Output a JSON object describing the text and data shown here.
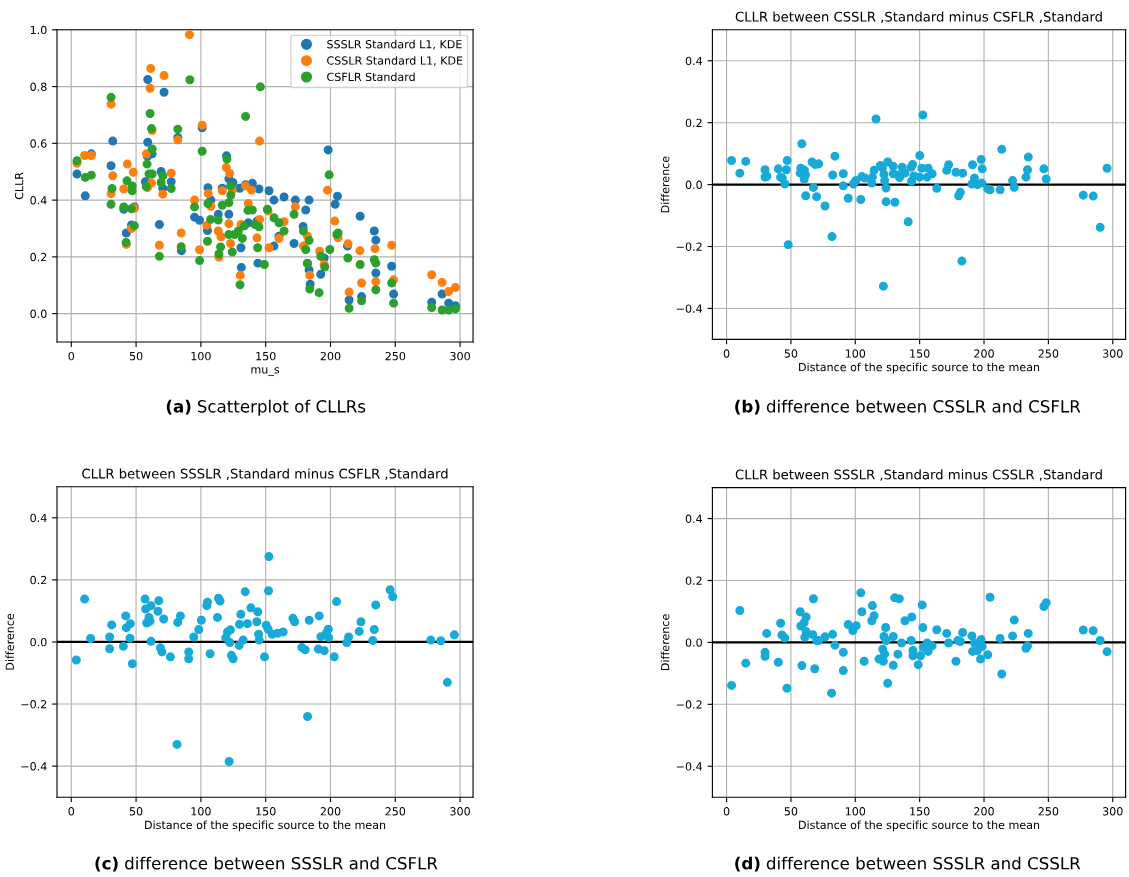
{
  "chart_data": [
    {
      "type": "scatter",
      "xlabel": "mu_s",
      "ylabel": "CLLR",
      "annotations": [
        "(a) Scatterplot of CLLRs"
      ],
      "xlim": [
        -11,
        310
      ],
      "ylim": [
        -0.1,
        1.0
      ],
      "xticks": [
        0,
        50,
        100,
        150,
        200,
        250,
        300
      ],
      "yticks": [
        {
          "value": 0.0,
          "label": "0.0"
        },
        {
          "value": 0.2,
          "label": "0.2"
        },
        {
          "value": 0.4,
          "label": "0.4"
        },
        {
          "value": 0.6,
          "label": "0.6"
        },
        {
          "value": 0.8,
          "label": "0.8"
        },
        {
          "value": 1.0,
          "label": "1.0"
        }
      ],
      "grid": true,
      "legend": "top right",
      "marker": "circle",
      "series": [
        {
          "name": "SSSLR Standard L1, KDE",
          "color": "#1f77b4",
          "x": [
            4.4,
            10.8,
            15.5,
            30.7,
            32.0,
            40.5,
            42.5,
            46.4,
            48.7,
            59.0,
            71.6,
            59.0,
            58.8,
            62.4,
            57.2,
            69.3,
            70.6,
            77.1,
            68.0,
            82.2,
            85.0,
            101.0,
            95.1,
            99.0,
            105.4,
            105.1,
            107.7,
            113.4,
            116.5,
            119.8,
            121.6,
            121.6,
            124.7,
            129.9,
            130.9,
            131.2,
            134.5,
            139.7,
            136.6,
            144.0,
            144.8,
            143.3,
            152.6,
            156.4,
            164.2,
            172.9,
            183.5,
            180.9,
            178.9,
            160.3,
            156.4,
            171.9,
            182.2,
            183.5,
            184.3,
            192.5,
            195.1,
            198.2,
            205.4,
            203.6,
            213.1,
            222.9,
            233.8,
            235.0,
            235.0,
            214.4,
            224.0,
            247.2,
            248.7,
            278.1,
            286.1,
            291.2,
            296.4
          ],
          "values": [
            0.492,
            0.415,
            0.563,
            0.521,
            0.608,
            0.368,
            0.284,
            0.312,
            0.376,
            0.825,
            0.78,
            0.604,
            0.554,
            0.563,
            0.465,
            0.501,
            0.442,
            0.465,
            0.314,
            0.621,
            0.222,
            0.655,
            0.34,
            0.329,
            0.444,
            0.293,
            0.4,
            0.35,
            0.442,
            0.556,
            0.475,
            0.35,
            0.462,
            0.442,
            0.232,
            0.163,
            0.454,
            0.459,
            0.32,
            0.178,
            0.439,
            0.326,
            0.433,
            0.4,
            0.411,
            0.4,
            0.4,
            0.365,
            0.307,
            0.273,
            0.238,
            0.247,
            0.178,
            0.154,
            0.104,
            0.139,
            0.196,
            0.577,
            0.414,
            0.385,
            0.238,
            0.343,
            0.291,
            0.259,
            0.143,
            0.048,
            0.06,
            0.167,
            0.069,
            0.04,
            0.069,
            0.037,
            0.028
          ]
        },
        {
          "name": "CSSLR Standard L1, KDE",
          "color": "#ff7f0e",
          "x": [
            4.4,
            10.3,
            15.5,
            30.7,
            32.0,
            30.7,
            43.3,
            47.9,
            40.5,
            42.5,
            48.7,
            46.4,
            61.3,
            60.8,
            71.6,
            62.4,
            58.0,
            61.9,
            58.8,
            70.6,
            77.1,
            68.0,
            82.2,
            84.8,
            99.0,
            91.2,
            101.0,
            95.1,
            105.7,
            107.7,
            104.6,
            113.4,
            115.5,
            116.5,
            119.6,
            122.2,
            121.6,
            122.9,
            113.9,
            124.2,
            130.4,
            130.9,
            136.6,
            139.1,
            134.5,
            143.3,
            145.3,
            145.3,
            152.6,
            151.8,
            160.3,
            164.2,
            172.9,
            179.1,
            182.2,
            184.0,
            191.7,
            195.1,
            197.7,
            203.3,
            205.9,
            213.6,
            222.7,
            224.0,
            234.3,
            235.0,
            214.4,
            247.2,
            248.7,
            278.1,
            286.1,
            291.2,
            296.4
          ],
          "values": [
            0.53,
            0.557,
            0.557,
            0.738,
            0.486,
            0.423,
            0.527,
            0.498,
            0.439,
            0.244,
            0.371,
            0.3,
            0.864,
            0.794,
            0.839,
            0.645,
            0.563,
            0.46,
            0.444,
            0.421,
            0.495,
            0.241,
            0.612,
            0.284,
            0.225,
            0.983,
            0.664,
            0.4,
            0.423,
            0.378,
            0.311,
            0.291,
            0.271,
            0.433,
            0.515,
            0.494,
            0.317,
            0.247,
            0.199,
            0.435,
            0.135,
            0.314,
            0.388,
            0.435,
            0.45,
            0.267,
            0.332,
            0.608,
            0.232,
            0.362,
            0.265,
            0.324,
            0.377,
            0.238,
            0.273,
            0.135,
            0.22,
            0.173,
            0.435,
            0.326,
            0.267,
            0.246,
            0.222,
            0.108,
            0.229,
            0.113,
            0.076,
            0.241,
            0.119,
            0.137,
            0.11,
            0.078,
            0.092
          ]
        },
        {
          "name": "CSFLR Standard",
          "color": "#2ca02c",
          "x": [
            4.4,
            10.8,
            15.5,
            30.7,
            31.4,
            30.7,
            40.5,
            43.0,
            47.0,
            47.0,
            46.4,
            48.7,
            42.3,
            91.5,
            60.8,
            61.9,
            62.4,
            58.5,
            60.0,
            62.4,
            57.8,
            70.6,
            69.3,
            77.1,
            68.0,
            82.2,
            84.8,
            99.0,
            101.0,
            95.1,
            105.4,
            107.5,
            113.4,
            105.1,
            115.2,
            113.9,
            116.5,
            120.1,
            121.6,
            122.9,
            123.1,
            121.6,
            124.2,
            126.0,
            130.2,
            132.0,
            128.9,
            133.5,
            136.3,
            139.7,
            141.8,
            143.8,
            145.9,
            134.5,
            144.8,
            149.0,
            151.3,
            156.4,
            160.3,
            164.2,
            171.9,
            179.1,
            180.9,
            183.5,
            182.2,
            184.0,
            191.2,
            192.5,
            195.6,
            199.0,
            199.5,
            204.9,
            205.9,
            213.4,
            222.9,
            233.8,
            235.0,
            235.0,
            214.4,
            224.0,
            247.2,
            248.7,
            278.1,
            286.1,
            291.2,
            296.4
          ],
          "values": [
            0.539,
            0.48,
            0.488,
            0.762,
            0.441,
            0.385,
            0.376,
            0.468,
            0.45,
            0.433,
            0.37,
            0.31,
            0.251,
            0.824,
            0.705,
            0.652,
            0.58,
            0.527,
            0.492,
            0.492,
            0.448,
            0.486,
            0.462,
            0.441,
            0.202,
            0.65,
            0.236,
            0.187,
            0.572,
            0.376,
            0.388,
            0.332,
            0.33,
            0.255,
            0.235,
            0.21,
            0.382,
            0.545,
            0.391,
            0.45,
            0.417,
            0.279,
            0.217,
            0.279,
            0.102,
            0.265,
            0.291,
            0.309,
            0.364,
            0.365,
            0.314,
            0.232,
            0.799,
            0.695,
            0.306,
            0.173,
            0.368,
            0.338,
            0.32,
            0.291,
            0.35,
            0.291,
            0.226,
            0.258,
            0.176,
            0.087,
            0.074,
            0.202,
            0.164,
            0.489,
            0.226,
            0.279,
            0.284,
            0.196,
            0.173,
            0.19,
            0.178,
            0.084,
            0.019,
            0.045,
            0.108,
            0.037,
            0.021,
            0.013,
            0.013,
            0.017
          ]
        }
      ]
    },
    {
      "type": "scatter",
      "title": "CLLR between CSSLR ,Standard minus CSFLR ,Standard",
      "xlabel": "Distance of the specific source to the mean",
      "ylabel": "Difference",
      "annotations": [
        "(b) difference between CSSLR and CSFLR"
      ],
      "xlim": [
        -11,
        310
      ],
      "ylim": [
        -0.5,
        0.5
      ],
      "xticks": [
        0,
        50,
        100,
        150,
        200,
        250,
        300
      ],
      "yticks": [
        {
          "value": -0.4,
          "label": "−0.4"
        },
        {
          "value": -0.2,
          "label": "−0.2"
        },
        {
          "value": 0.0,
          "label": "0.0"
        },
        {
          "value": 0.2,
          "label": "0.2"
        },
        {
          "value": 0.4,
          "label": "0.4"
        }
      ],
      "grid": true,
      "marker": "circle",
      "ref_lines": [
        {
          "axis": "y",
          "value": 0,
          "color": "#000000"
        }
      ],
      "series": [
        {
          "color": "#17aad8",
          "x": [
            3.9,
            10.3,
            14.9,
            29.9,
            29.9,
            31.4,
            40.2,
            42,
            43.3,
            45.3,
            46.4,
            47.1,
            47.9,
            58.5,
            57.2,
            57.7,
            60.5,
            61.3,
            60.3,
            61.5,
            66.4,
            67.5,
            69,
            71.6,
            70,
            76.5,
            81.9,
            82.4,
            84.2,
            90.7,
            90.7,
            94.5,
            98.6,
            100.4,
            104.3,
            105.1,
            107.4,
            112.8,
            113.3,
            114.6,
            116.1,
            119.5,
            121.1,
            121.8,
            122.3,
            122.8,
            123.9,
            123.9,
            125.2,
            129.5,
            129.5,
            130.8,
            133.1,
            134.4,
            136.5,
            138.6,
            141.1,
            143.4,
            144.5,
            143.7,
            145.5,
            150.1,
            152.5,
            151.7,
            149.9,
            155.8,
            156.6,
            159.7,
            163.3,
            171,
            172.5,
            178.2,
            180.3,
            181.6,
            183.4,
            182.8,
            191.1,
            190.6,
            192.6,
            194.9,
            197.8,
            198.6,
            198.3,
            202.9,
            204.7,
            212.5,
            213.8,
            222.2,
            223.5,
            232.6,
            233.8,
            234.4,
            246.5,
            248.3,
            277.1,
            284.8,
            290.2,
            295.6
          ],
          "values": [
            0.078,
            0.037,
            0.075,
            0.048,
            0.024,
            0.027,
            0.051,
            0.024,
            0.021,
            0.002,
            0.048,
            0.078,
            -0.194,
            0.132,
            0.037,
            0.053,
            0.046,
            0.031,
            0.017,
            -0.036,
            0.073,
            -0.009,
            0.065,
            0.067,
            -0.039,
            -0.069,
            -0.168,
            0.031,
            0.092,
            0.035,
            -0.004,
            -0.044,
            0.002,
            0.013,
            -0.048,
            0.026,
            0.021,
            0.005,
            0.024,
            0.046,
            0.212,
            0.062,
            0.054,
            -0.328,
            0.033,
            0.013,
            -0.011,
            -0.055,
            0.073,
            0.059,
            0.035,
            -0.057,
            0.031,
            0.023,
            0.056,
            0.037,
            -0.12,
            0.056,
            0.065,
            0.011,
            0.028,
            0.094,
            0.225,
            0.053,
            0.024,
            0.024,
            0.053,
            0.035,
            -0.012,
            0.046,
            0.064,
            0.04,
            -0.036,
            -0.025,
            0.037,
            -0.247,
            0.064,
            0.002,
            0.021,
            0.0,
            0.081,
            0.051,
            0.005,
            -0.014,
            -0.017,
            -0.017,
            0.114,
            0.013,
            -0.009,
            0.024,
            0.048,
            0.089,
            0.051,
            0.018,
            -0.034,
            -0.037,
            -0.138,
            0.053
          ]
        }
      ]
    },
    {
      "type": "scatter",
      "title": "CLLR between SSSLR ,Standard minus CSFLR ,Standard",
      "xlabel": "Distance of the specific source to the mean",
      "ylabel": "Difference",
      "annotations": [
        "(c) difference between SSSLR and CSFLR"
      ],
      "xlim": [
        -11,
        310
      ],
      "ylim": [
        -0.5,
        0.5
      ],
      "xticks": [
        0,
        50,
        100,
        150,
        200,
        250,
        300
      ],
      "yticks": [
        {
          "value": -0.4,
          "label": "−0.4"
        },
        {
          "value": -0.2,
          "label": "−0.2"
        },
        {
          "value": 0.0,
          "label": "0.0"
        },
        {
          "value": 0.2,
          "label": "0.2"
        },
        {
          "value": 0.4,
          "label": "0.4"
        }
      ],
      "grid": true,
      "marker": "circle",
      "ref_lines": [
        {
          "axis": "y",
          "value": 0,
          "color": "#000000"
        }
      ],
      "series": [
        {
          "color": "#17aad8",
          "x": [
            3.9,
            10.3,
            14.9,
            29.6,
            29.6,
            31.2,
            40.2,
            42,
            42.5,
            45.6,
            45.3,
            47.1,
            56.9,
            57.4,
            58.2,
            60,
            60.8,
            61.5,
            61.5,
            66.9,
            67.5,
            68.8,
            70,
            71.3,
            76.5,
            81.6,
            82.1,
            84.2,
            90.6,
            90.6,
            94.5,
            98.4,
            100.4,
            104.6,
            105.1,
            107.1,
            112.8,
            113.6,
            114.8,
            119.2,
            120.5,
            121.8,
            122.3,
            122.8,
            123.6,
            124.9,
            129.5,
            129.8,
            130.8,
            132.6,
            134.2,
            135.9,
            138.6,
            143.2,
            143.9,
            144.5,
            145,
            149.1,
            150.4,
            151.9,
            152.2,
            152.5,
            155,
            159.2,
            163.5,
            171,
            172.3,
            177.9,
            180.5,
            183.6,
            182.3,
            190.6,
            191.3,
            192.6,
            195.2,
            197,
            198.3,
            198.6,
            202.9,
            204.7,
            212.5,
            214,
            222.2,
            223.5,
            232.6,
            233.8,
            234.9,
            246,
            248,
            277.4,
            285.1,
            290.2,
            295.6
          ],
          "values": [
            -0.058,
            0.138,
            0.011,
            -0.022,
            0.016,
            0.055,
            -0.014,
            0.084,
            0.046,
            0.059,
            0.012,
            -0.07,
            0.138,
            0.106,
            0.061,
            0.079,
            0.067,
            0.117,
            0.002,
            0.099,
            0.133,
            -0.019,
            -0.032,
            0.074,
            -0.048,
            -0.33,
            0.063,
            0.084,
            -0.032,
            -0.054,
            0.016,
            0.04,
            0.07,
            0.117,
            0.128,
            -0.038,
            0.079,
            0.141,
            0.132,
            0.013,
            0.032,
            -0.385,
            -0.002,
            0.039,
            -0.043,
            -0.054,
            -0.011,
            0.057,
            0.089,
            0.006,
            0.162,
            0.059,
            0.11,
            0.065,
            0.097,
            0.025,
            0.006,
            -0.048,
            0.054,
            0.041,
            0.165,
            0.275,
            0.025,
            0.028,
            0.032,
            0.076,
            0.065,
            -0.018,
            -0.025,
            0.07,
            -0.24,
            -0.023,
            0.084,
            0.017,
            -0.028,
            0.03,
            0.041,
            0.014,
            -0.048,
            0.13,
            -0.002,
            0.016,
            0.034,
            0.065,
            0.005,
            0.04,
            0.119,
            0.168,
            0.146,
            0.006,
            0.004,
            -0.13,
            0.023
          ]
        }
      ]
    },
    {
      "type": "scatter",
      "title": "CLLR between SSSLR ,Standard minus CSSLR ,Standard",
      "xlabel": "Distance of the specific source to the mean",
      "ylabel": "Difference",
      "annotations": [
        "(d) difference between SSSLR and CSSLR"
      ],
      "xlim": [
        -11,
        310
      ],
      "ylim": [
        -0.5,
        0.5
      ],
      "xticks": [
        0,
        50,
        100,
        150,
        200,
        250,
        300
      ],
      "yticks": [
        {
          "value": -0.4,
          "label": "−0.4"
        },
        {
          "value": -0.2,
          "label": "−0.2"
        },
        {
          "value": 0.0,
          "label": "0.0"
        },
        {
          "value": 0.2,
          "label": "0.2"
        },
        {
          "value": 0.4,
          "label": "0.4"
        }
      ],
      "grid": true,
      "marker": "circle",
      "ref_lines": [
        {
          "axis": "y",
          "value": 0,
          "color": "#000000"
        }
      ],
      "series": [
        {
          "color": "#17aad8",
          "x": [
            3.9,
            10.3,
            14.9,
            29.9,
            29.9,
            31.2,
            40.2,
            42,
            43,
            45.3,
            46.9,
            57.2,
            57.7,
            60.3,
            61.8,
            61.8,
            60.8,
            58.5,
            67,
            67.5,
            68.5,
            70,
            71.6,
            76.5,
            81.6,
            82.4,
            84.2,
            90.7,
            90.7,
            94.5,
            98.1,
            100.7,
            104.3,
            105.1,
            106.9,
            112.8,
            113.3,
            114.6,
            118.4,
            121.3,
            121.8,
            122.3,
            122.8,
            123.6,
            123.9,
            125.2,
            129.5,
            129.5,
            130.6,
            133.1,
            134.2,
            136,
            138.6,
            143.4,
            143.9,
            144.8,
            144.8,
            148.9,
            150.7,
            152,
            152.5,
            152.8,
            155.8,
            156.6,
            159.7,
            163.3,
            171,
            172.5,
            178.2,
            179.7,
            181.6,
            183.4,
            190.6,
            191.1,
            192.6,
            194.9,
            197.8,
            197.3,
            198.6,
            202.9,
            204.7,
            212.5,
            213.8,
            222.2,
            223.5,
            232.6,
            233.8,
            234.4,
            246.5,
            248.3,
            277.1,
            284.8,
            290.2,
            295.6
          ],
          "values": [
            -0.139,
            0.103,
            -0.067,
            -0.032,
            -0.045,
            0.029,
            -0.064,
            0.062,
            0.024,
            0.014,
            -0.148,
            0.099,
            0.053,
            0.064,
            0.082,
            0.035,
            0.017,
            -0.075,
            0.025,
            0.141,
            -0.085,
            0.006,
            0.006,
            0.018,
            -0.164,
            0.026,
            -0.009,
            -0.032,
            -0.091,
            0.058,
            0.038,
            0.054,
            0.16,
            0.099,
            -0.061,
            0.07,
            0.119,
            0.086,
            -0.054,
            -0.022,
            -0.061,
            0.019,
            -0.038,
            0.048,
            0.006,
            -0.132,
            0.019,
            -0.074,
            0.144,
            -0.038,
            0.141,
            -0.002,
            0.07,
            0.006,
            0.082,
            -0.026,
            -0.043,
            -0.072,
            -0.043,
            0.121,
            0.048,
            -0.016,
            -0.002,
            -0.029,
            -0.011,
            0.041,
            0.029,
            -0.002,
            -0.061,
            0.006,
            0.003,
            0.032,
            0.021,
            -0.029,
            -0.002,
            -0.026,
            0.009,
            -0.054,
            -0.013,
            -0.04,
            0.146,
            0.013,
            -0.102,
            0.021,
            0.072,
            -0.019,
            -0.011,
            0.029,
            0.116,
            0.128,
            0.04,
            0.038,
            0.006,
            -0.03
          ]
        }
      ]
    }
  ]
}
